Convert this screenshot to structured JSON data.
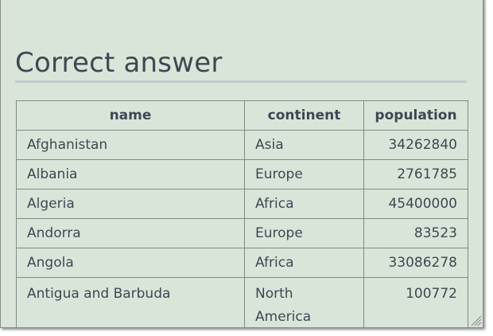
{
  "title": "Correct answer",
  "table": {
    "headers": [
      "name",
      "continent",
      "population"
    ],
    "rows": [
      {
        "name": "Afghanistan",
        "continent": "Asia",
        "population": "34262840"
      },
      {
        "name": "Albania",
        "continent": "Europe",
        "population": "2761785"
      },
      {
        "name": "Algeria",
        "continent": "Africa",
        "population": "45400000"
      },
      {
        "name": "Andorra",
        "continent": "Europe",
        "population": "83523"
      },
      {
        "name": "Angola",
        "continent": "Africa",
        "population": "33086278"
      },
      {
        "name": "Antigua and Barbuda",
        "continent": "North America",
        "population": "100772"
      }
    ]
  },
  "icons": {
    "resize": "resize-grip-icon"
  }
}
